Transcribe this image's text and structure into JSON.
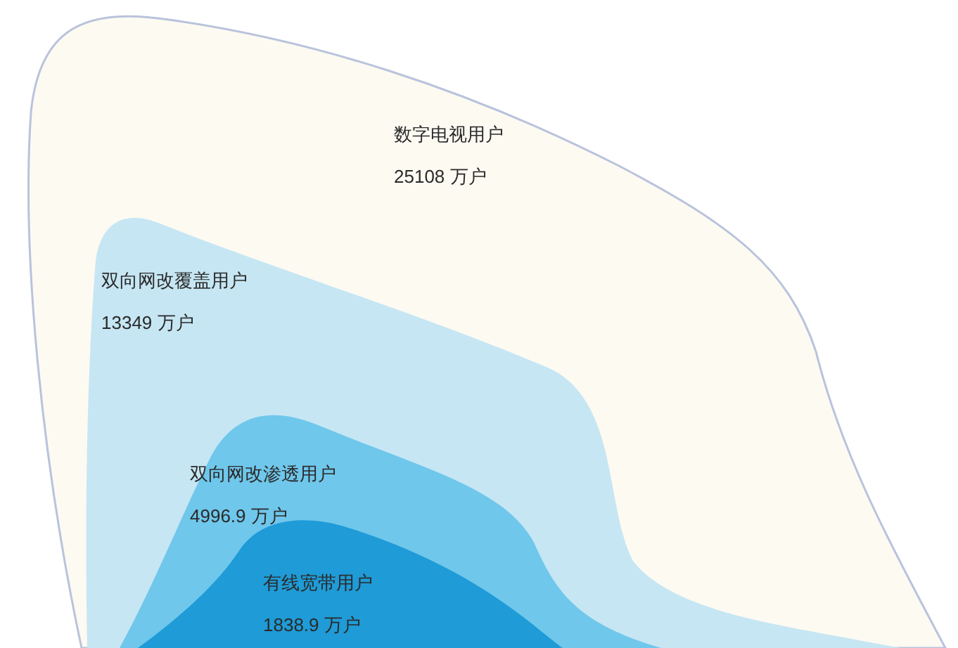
{
  "chart_data": {
    "type": "other",
    "categories": [
      "数字电视用户",
      "双向网改覆盖用户",
      "双向网改渗透用户",
      "有线宽带用户"
    ],
    "values": [
      25108,
      13349,
      4996.9,
      1838.9
    ],
    "value_labels": [
      "25108 万户",
      "13349 万户",
      "4996.9 万户",
      "1838.9 万户"
    ],
    "colors": [
      "#fdfaf2",
      "#c6e6f3",
      "#6fc7eb",
      "#1f9bd7"
    ]
  }
}
